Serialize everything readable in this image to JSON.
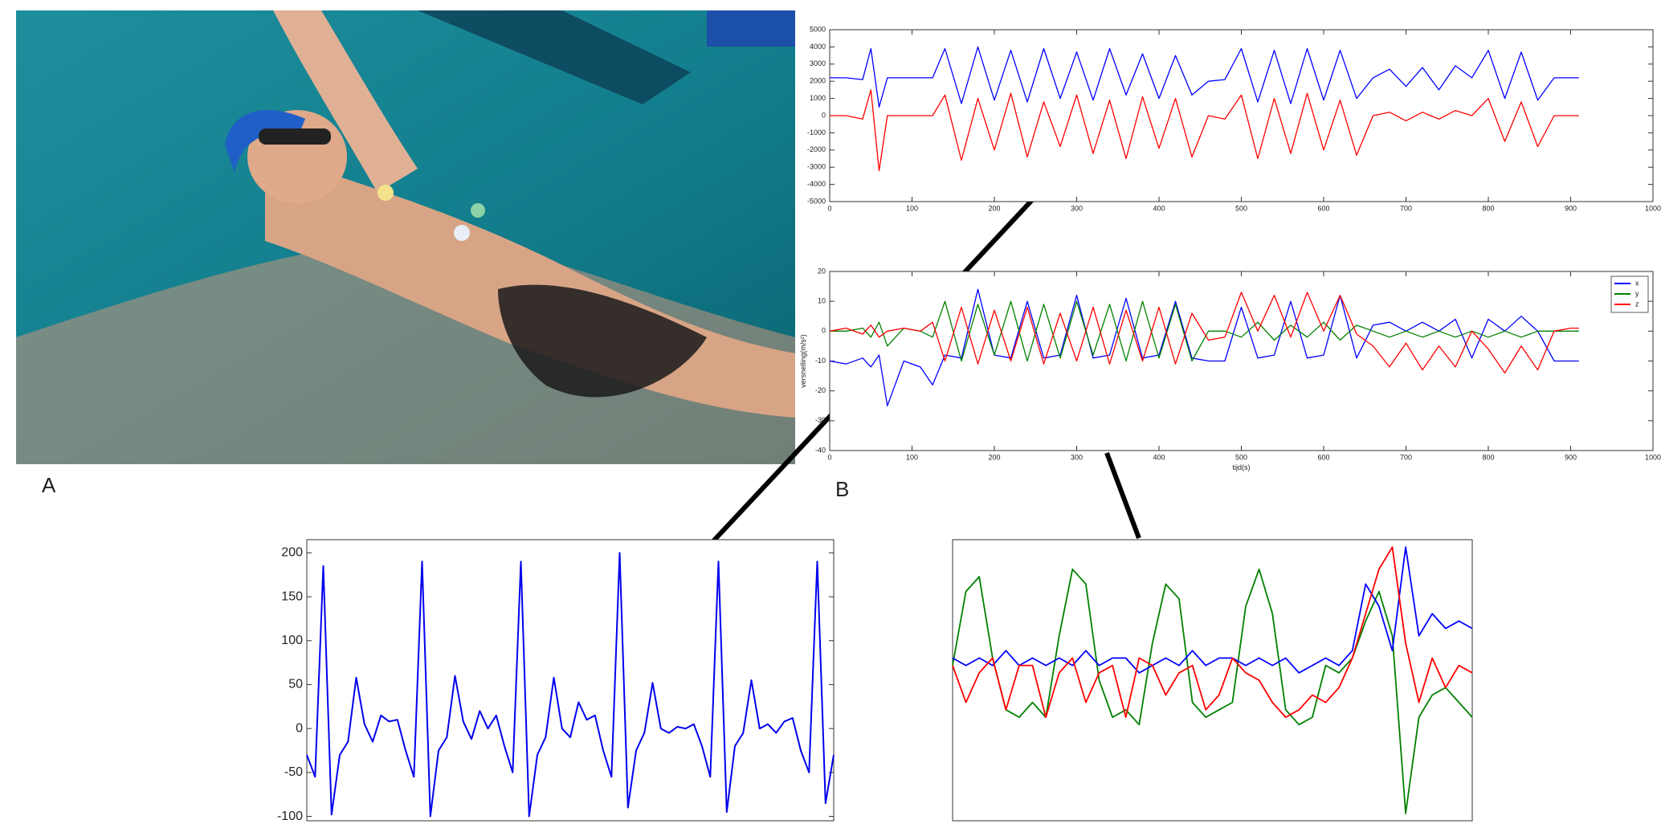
{
  "figure": {
    "label_a": "A",
    "label_b": "B"
  },
  "chart_data": [
    {
      "type": "line",
      "x": [
        0,
        20,
        40,
        50,
        60,
        70,
        90,
        110,
        125,
        140,
        160,
        180,
        200,
        220,
        240,
        260,
        280,
        300,
        320,
        340,
        360,
        380,
        400,
        420,
        440,
        460,
        480,
        500,
        520,
        540,
        560,
        580,
        600,
        620,
        640,
        660,
        680,
        700,
        720,
        740,
        760,
        780,
        800,
        820,
        840,
        860,
        880,
        900,
        910
      ],
      "xlim": [
        0,
        1000
      ],
      "xticks": [
        0,
        100,
        200,
        300,
        400,
        500,
        600,
        700,
        800,
        900,
        1000
      ],
      "ylim": [
        -5000,
        5000
      ],
      "yticks": [
        -5000,
        -4000,
        -3000,
        -2000,
        -1000,
        0,
        1000,
        2000,
        3000,
        4000,
        5000
      ],
      "series": [
        {
          "color": "#0000ff",
          "values": [
            2200,
            2200,
            2100,
            3900,
            500,
            2200,
            2200,
            2200,
            2200,
            3900,
            700,
            4000,
            900,
            3800,
            800,
            3900,
            1000,
            3700,
            900,
            3900,
            1200,
            3600,
            1000,
            3500,
            1200,
            2000,
            2100,
            3900,
            800,
            3800,
            700,
            3900,
            900,
            3800,
            1000,
            2200,
            2700,
            1700,
            2800,
            1500,
            2900,
            2200,
            3800,
            1000,
            3700,
            900,
            2200,
            2200,
            2200
          ]
        },
        {
          "color": "#ff0000",
          "values": [
            0,
            0,
            -200,
            1500,
            -3200,
            0,
            0,
            0,
            0,
            1200,
            -2600,
            1000,
            -2000,
            1300,
            -2400,
            800,
            -1800,
            1200,
            -2200,
            900,
            -2500,
            1100,
            -1900,
            1000,
            -2400,
            0,
            -200,
            1200,
            -2500,
            1000,
            -2200,
            1300,
            -2000,
            900,
            -2300,
            0,
            200,
            -300,
            200,
            -200,
            300,
            0,
            1000,
            -1500,
            800,
            -1800,
            0,
            0,
            0
          ]
        }
      ]
    },
    {
      "type": "line",
      "x": [
        0,
        20,
        40,
        50,
        60,
        70,
        90,
        110,
        125,
        140,
        160,
        180,
        200,
        220,
        240,
        260,
        280,
        300,
        320,
        340,
        360,
        380,
        400,
        420,
        440,
        460,
        480,
        500,
        520,
        540,
        560,
        580,
        600,
        620,
        640,
        660,
        680,
        700,
        720,
        740,
        760,
        780,
        800,
        820,
        840,
        860,
        880,
        900,
        910
      ],
      "xlim": [
        0,
        1000
      ],
      "xticks": [
        0,
        100,
        200,
        300,
        400,
        500,
        600,
        700,
        800,
        900,
        1000
      ],
      "ylim": [
        -40,
        20
      ],
      "yticks": [
        -40,
        -30,
        -20,
        -10,
        0,
        10,
        20
      ],
      "x_label": "tijd(s)",
      "y_label": "versnelling(m/s²)",
      "legend": "top-right",
      "series": [
        {
          "name": "x",
          "color": "#0000ff",
          "values": [
            -10,
            -11,
            -9,
            -12,
            -8,
            -25,
            -10,
            -12,
            -18,
            -8,
            -9,
            14,
            -8,
            -9,
            10,
            -9,
            -8,
            12,
            -9,
            -8,
            11,
            -9,
            -8,
            10,
            -9,
            -10,
            -10,
            8,
            -9,
            -8,
            10,
            -9,
            -8,
            12,
            -9,
            2,
            3,
            0,
            3,
            0,
            4,
            -9,
            4,
            0,
            5,
            0,
            -10,
            -10,
            -10
          ]
        },
        {
          "name": "y",
          "color": "#008000",
          "values": [
            0,
            0,
            1,
            -2,
            3,
            -5,
            1,
            0,
            -2,
            10,
            -10,
            9,
            -8,
            10,
            -10,
            9,
            -9,
            10,
            -8,
            9,
            -10,
            10,
            -9,
            9,
            -10,
            0,
            0,
            -2,
            3,
            -3,
            2,
            -2,
            3,
            -3,
            2,
            0,
            -2,
            0,
            -2,
            0,
            -2,
            0,
            -2,
            0,
            -2,
            0,
            0,
            0,
            0
          ]
        },
        {
          "name": "z",
          "color": "#ff0000",
          "values": [
            0,
            1,
            -1,
            2,
            -2,
            0,
            1,
            0,
            3,
            -10,
            8,
            -11,
            7,
            -10,
            8,
            -11,
            6,
            -10,
            8,
            -11,
            7,
            -10,
            8,
            -11,
            6,
            -3,
            -2,
            13,
            0,
            12,
            -2,
            13,
            0,
            12,
            -1,
            -5,
            -12,
            -4,
            -13,
            -5,
            -12,
            0,
            -6,
            -14,
            -5,
            -13,
            0,
            1,
            1
          ]
        }
      ]
    },
    {
      "type": "line",
      "ylim": [
        -105,
        215
      ],
      "yticks": [
        -100,
        -50,
        0,
        50,
        100,
        150,
        200
      ],
      "series": [
        {
          "color": "#0000ee",
          "values": [
            -30,
            -55,
            185,
            -98,
            -30,
            -15,
            58,
            5,
            -15,
            15,
            8,
            10,
            -25,
            -55,
            190,
            -100,
            -25,
            -10,
            60,
            8,
            -12,
            20,
            0,
            15,
            -20,
            -50,
            190,
            -100,
            -30,
            -10,
            58,
            0,
            -10,
            30,
            10,
            15,
            -25,
            -55,
            200,
            -90,
            -25,
            -5,
            52,
            0,
            -5,
            2,
            0,
            5,
            -20,
            -55,
            190,
            -95,
            -20,
            -5,
            55,
            0,
            5,
            -5,
            8,
            12,
            -25,
            -50,
            190,
            -85,
            -30
          ]
        }
      ]
    },
    {
      "type": "line",
      "ylim": [
        -1.9,
        1.9
      ],
      "series": [
        {
          "color": "#008000",
          "values": [
            0.2,
            1.2,
            1.4,
            0.3,
            -0.4,
            -0.5,
            -0.3,
            -0.5,
            0.6,
            1.5,
            1.3,
            0,
            -0.5,
            -0.4,
            -0.6,
            0.5,
            1.3,
            1.1,
            -0.3,
            -0.5,
            -0.4,
            -0.3,
            1.0,
            1.5,
            0.9,
            -0.4,
            -0.6,
            -0.5,
            0.2,
            0.1,
            0.3,
            0.8,
            1.2,
            0.6,
            -1.8,
            -0.5,
            -0.2,
            -0.1,
            -0.3,
            -0.5
          ]
        },
        {
          "color": "#0000ff",
          "values": [
            0.3,
            0.2,
            0.3,
            0.2,
            0.4,
            0.2,
            0.3,
            0.2,
            0.3,
            0.2,
            0.4,
            0.2,
            0.3,
            0.3,
            0.1,
            0.2,
            0.3,
            0.2,
            0.4,
            0.2,
            0.3,
            0.3,
            0.2,
            0.3,
            0.2,
            0.3,
            0.1,
            0.2,
            0.3,
            0.2,
            0.4,
            1.3,
            1.0,
            0.4,
            1.8,
            0.6,
            0.9,
            0.7,
            0.8,
            0.7
          ]
        },
        {
          "color": "#ff0000",
          "values": [
            0.2,
            -0.3,
            0.1,
            0.3,
            -0.4,
            0.2,
            0.2,
            -0.5,
            0.1,
            0.3,
            -0.3,
            0.1,
            0.2,
            -0.5,
            0.3,
            0.2,
            -0.2,
            0.1,
            0.2,
            -0.4,
            -0.2,
            0.3,
            0.1,
            0.0,
            -0.3,
            -0.5,
            -0.4,
            -0.2,
            -0.3,
            -0.1,
            0.3,
            0.9,
            1.5,
            1.8,
            0.5,
            -0.3,
            0.3,
            -0.1,
            0.2,
            0.1
          ]
        }
      ]
    }
  ]
}
